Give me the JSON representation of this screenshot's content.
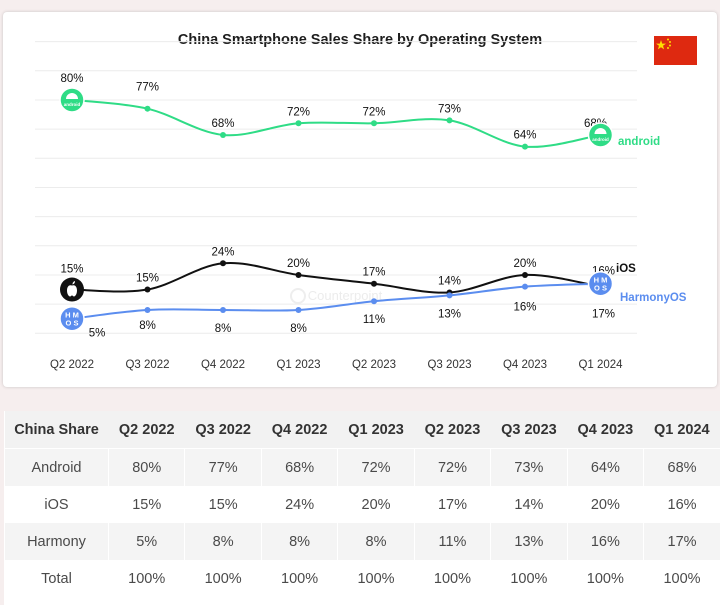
{
  "chart_data": {
    "type": "line",
    "title": "China Smartphone Sales Share by Operating System",
    "categories": [
      "Q2 2022",
      "Q3 2022",
      "Q4 2022",
      "Q1 2023",
      "Q2 2023",
      "Q3 2023",
      "Q4 2023",
      "Q1 2024"
    ],
    "series": [
      {
        "name": "android",
        "color": "#2fdc86",
        "values": [
          80,
          77,
          68,
          72,
          72,
          73,
          64,
          68
        ],
        "labels": [
          "80%",
          "77%",
          "68%",
          "72%",
          "72%",
          "73%",
          "64%",
          "68%"
        ]
      },
      {
        "name": "iOS",
        "color": "#111111",
        "values": [
          15,
          15,
          24,
          20,
          17,
          14,
          20,
          16
        ],
        "labels": [
          "15%",
          "15%",
          "24%",
          "20%",
          "17%",
          "14%",
          "20%",
          "16%"
        ]
      },
      {
        "name": "HarmonyOS",
        "color": "#5b8def",
        "values": [
          5,
          8,
          8,
          8,
          11,
          13,
          16,
          17
        ],
        "labels": [
          "5%",
          "8%",
          "8%",
          "8%",
          "11%",
          "13%",
          "16%",
          "17%"
        ]
      }
    ],
    "legend_labels": {
      "android": "android",
      "ios": "iOS",
      "harmony": "HarmonyOS"
    },
    "icon_text": {
      "android": "android",
      "harmony_top": "H M",
      "harmony_bottom": "O S"
    },
    "watermark": "Counterpoint",
    "ylabel": "",
    "xlabel": "",
    "ylim": [
      0,
      100
    ],
    "grid": true
  },
  "flag": {
    "name": "china-flag",
    "color": "#de2910",
    "star_color": "#ffde00"
  },
  "table": {
    "headers": [
      "China Share",
      "Q2 2022",
      "Q3 2022",
      "Q4 2022",
      "Q1 2023",
      "Q2 2023",
      "Q3 2023",
      "Q4 2023",
      "Q1 2024"
    ],
    "rows": [
      [
        "Android",
        "80%",
        "77%",
        "68%",
        "72%",
        "72%",
        "73%",
        "64%",
        "68%"
      ],
      [
        "iOS",
        "15%",
        "15%",
        "24%",
        "20%",
        "17%",
        "14%",
        "20%",
        "16%"
      ],
      [
        "Harmony",
        "5%",
        "8%",
        "8%",
        "8%",
        "11%",
        "13%",
        "16%",
        "17%"
      ],
      [
        "Total",
        "100%",
        "100%",
        "100%",
        "100%",
        "100%",
        "100%",
        "100%",
        "100%"
      ]
    ]
  }
}
